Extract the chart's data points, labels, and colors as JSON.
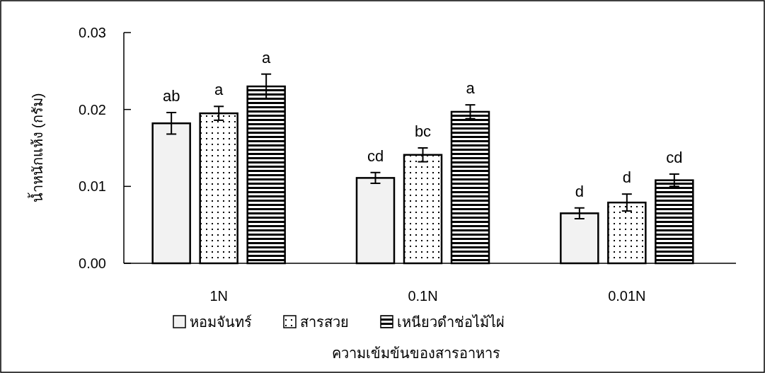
{
  "chart_data": {
    "type": "bar",
    "xlabel": "ความเข้มข้นของสารอาหาร",
    "ylabel": "น้ำหนักแห้ง (กรัม)",
    "categories": [
      "1N",
      "0.1N",
      "0.01N"
    ],
    "series": [
      {
        "name": "หอมจันทร์",
        "color": "#f2f2f2",
        "values": [
          0.0182,
          0.0111,
          0.0065
        ],
        "errors": [
          0.0014,
          0.0007,
          0.0007
        ],
        "value_labels": [
          "ab",
          "cd",
          "d"
        ]
      },
      {
        "name": "สารสวย",
        "color": "#000000",
        "values": [
          0.0195,
          0.0141,
          0.0079
        ],
        "errors": [
          0.0009,
          0.0009,
          0.0011
        ],
        "value_labels": [
          "a",
          "bc",
          "d"
        ]
      },
      {
        "name": "เหนียวดำช่อไม้ไผ่",
        "color": "#000000",
        "values": [
          0.023,
          0.0197,
          0.0108
        ],
        "errors": [
          0.0016,
          0.0009,
          0.0008
        ],
        "value_labels": [
          "a",
          "a",
          "cd"
        ]
      }
    ],
    "ylim": [
      0,
      0.03
    ],
    "yticks": [
      {
        "value": 0,
        "label": "0.00"
      },
      {
        "value": 0.01,
        "label": "0.01"
      },
      {
        "value": 0.02,
        "label": "0.02"
      },
      {
        "value": 0.03,
        "label": "0.03"
      }
    ],
    "grid": false,
    "legend": "bottom"
  }
}
